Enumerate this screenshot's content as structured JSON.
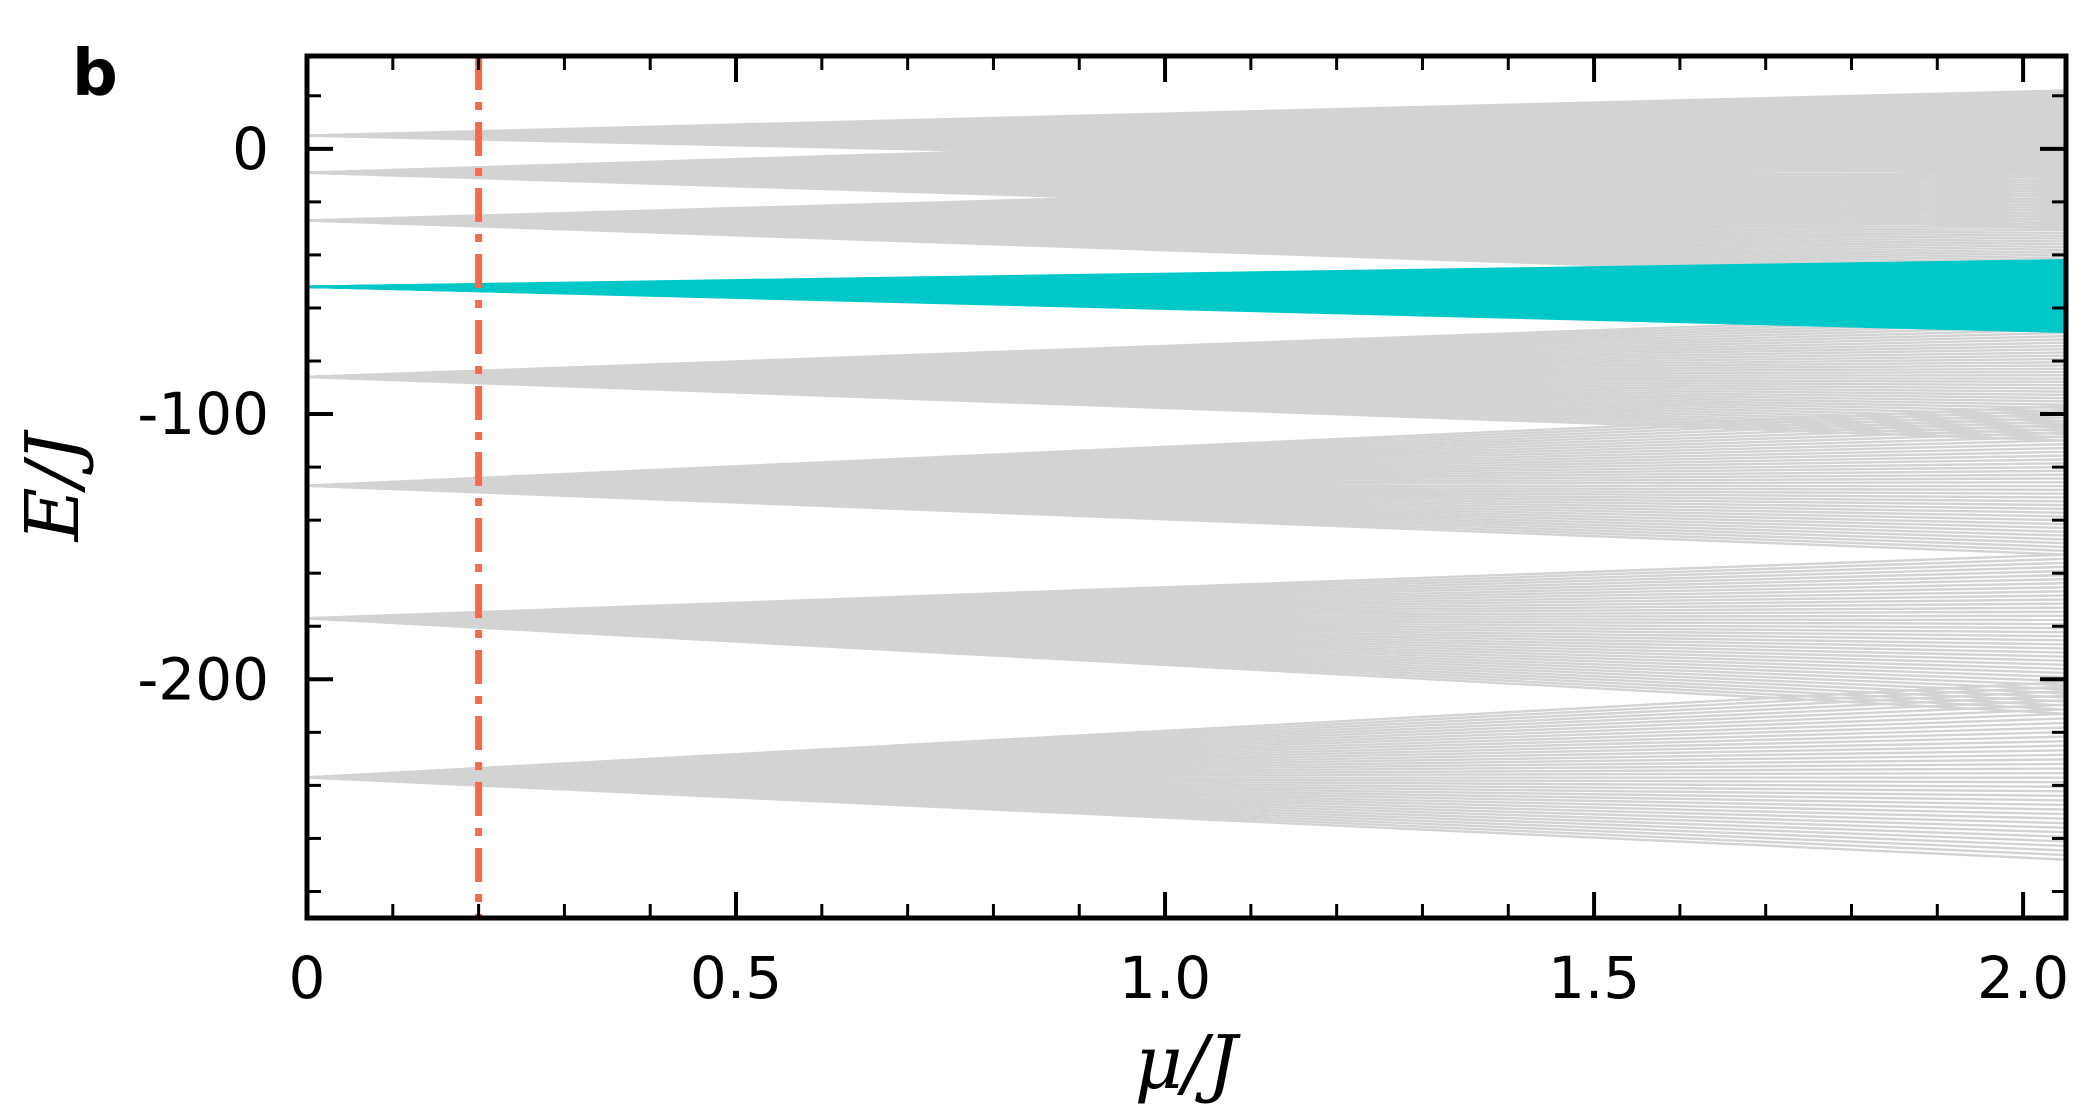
{
  "chart_data": {
    "type": "line",
    "panel_label": "b",
    "xlabel": "μ/J",
    "ylabel": "E/J",
    "xlim": [
      0,
      2.05
    ],
    "ylim": [
      -290,
      35
    ],
    "x_ticks": [
      0,
      0.5,
      1.0,
      1.5,
      2.0
    ],
    "x_tick_labels": [
      "0",
      "0.5",
      "1.0",
      "1.5",
      "2.0"
    ],
    "x_minor_step": 0.1,
    "y_ticks": [
      0,
      -100,
      -200
    ],
    "y_tick_labels": [
      "0",
      "-100",
      "-200"
    ],
    "y_minor_step": 20,
    "grid": false,
    "vertical_marker": {
      "x": 0.2,
      "color": "#f26a4f",
      "style": "dash-dot"
    },
    "colors": {
      "background_bands": "#d3d3d3",
      "highlighted_band": "#00c8c8",
      "marker": "#f26a4f"
    },
    "series": [
      {
        "band": 1,
        "origin_E": 5,
        "spread_at_max": [
          -10,
          22
        ],
        "count": 40,
        "color": "#d3d3d3"
      },
      {
        "band": 2,
        "origin_E": -9,
        "spread_at_max": [
          -30,
          12
        ],
        "count": 40,
        "color": "#d3d3d3"
      },
      {
        "band": 3,
        "origin_E": -27,
        "spread_at_max": [
          -50,
          -8
        ],
        "count": 40,
        "color": "#d3d3d3"
      },
      {
        "band": 4,
        "origin_E": -52,
        "spread_at_max": [
          -69,
          -42
        ],
        "count": 40,
        "color": "#00c8c8",
        "highlighted": true
      },
      {
        "band": 5,
        "origin_E": -86,
        "spread_at_max": [
          -110,
          -62
        ],
        "count": 40,
        "color": "#d3d3d3"
      },
      {
        "band": 6,
        "origin_E": -127,
        "spread_at_max": [
          -153,
          -97
        ],
        "count": 40,
        "color": "#d3d3d3"
      },
      {
        "band": 7,
        "origin_E": -177,
        "spread_at_max": [
          -213,
          -153
        ],
        "count": 40,
        "color": "#d3d3d3"
      },
      {
        "band": 8,
        "origin_E": -237,
        "spread_at_max": [
          -268,
          -201
        ],
        "count": 40,
        "color": "#d3d3d3"
      }
    ]
  }
}
